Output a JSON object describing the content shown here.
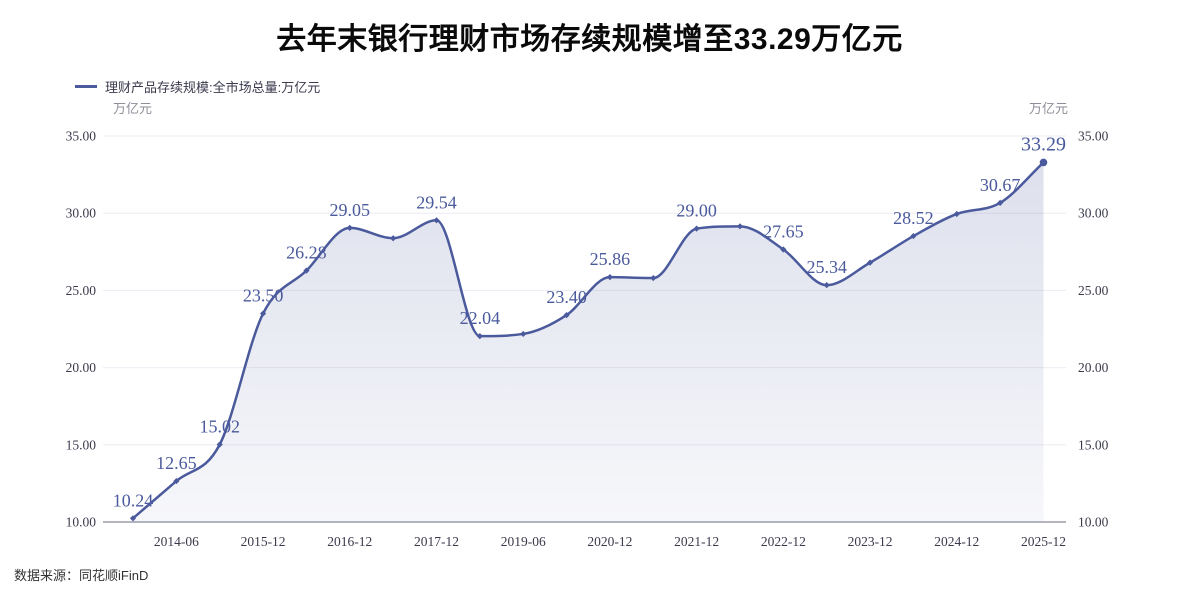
{
  "page": {
    "title": "去年末银行理财市场存续规模增至33.29万亿元",
    "source": "数据来源：同花顺iFinD"
  },
  "legend": {
    "label": "理财产品存续规模:全市场总量:万亿元"
  },
  "chart_data": {
    "type": "area",
    "title": "去年末银行理财市场存续规模增至33.29万亿元",
    "series_name": "理财产品存续规模:全市场总量:万亿元",
    "unit_left": "万亿元",
    "unit_right": "万亿元",
    "ylim": [
      10,
      35
    ],
    "y_ticks": [
      10,
      15,
      20,
      25,
      30,
      35
    ],
    "y_tick_format": "0.00",
    "grid": true,
    "legend_position": "top-left",
    "points": [
      {
        "tick": null,
        "value": 10.24,
        "labeled": true
      },
      {
        "tick": "2014-06",
        "value": 12.65,
        "labeled": true
      },
      {
        "tick": null,
        "value": 15.02,
        "labeled": true
      },
      {
        "tick": "2015-12",
        "value": 23.5,
        "labeled": true
      },
      {
        "tick": null,
        "value": 26.28,
        "labeled": true
      },
      {
        "tick": "2016-12",
        "value": 29.05,
        "labeled": true
      },
      {
        "tick": null,
        "value": 28.38,
        "labeled": false
      },
      {
        "tick": "2017-12",
        "value": 29.54,
        "labeled": true
      },
      {
        "tick": null,
        "value": 22.04,
        "labeled": true
      },
      {
        "tick": "2019-06",
        "value": 22.18,
        "labeled": false
      },
      {
        "tick": null,
        "value": 23.4,
        "labeled": true
      },
      {
        "tick": "2020-12",
        "value": 25.86,
        "labeled": true
      },
      {
        "tick": null,
        "value": 25.8,
        "labeled": false
      },
      {
        "tick": "2021-12",
        "value": 29.0,
        "labeled": true
      },
      {
        "tick": null,
        "value": 29.15,
        "labeled": false
      },
      {
        "tick": "2022-12",
        "value": 27.65,
        "labeled": true
      },
      {
        "tick": null,
        "value": 25.34,
        "labeled": true
      },
      {
        "tick": "2023-12",
        "value": 26.8,
        "labeled": false
      },
      {
        "tick": null,
        "value": 28.52,
        "labeled": true
      },
      {
        "tick": "2024-12",
        "value": 29.95,
        "labeled": false
      },
      {
        "tick": null,
        "value": 30.67,
        "labeled": true
      },
      {
        "tick": "2025-12",
        "value": 33.29,
        "labeled": true,
        "emphasis": true
      }
    ],
    "colors": {
      "line": "#4a5a9c",
      "marker": "#4a5a9c",
      "value_label": "#4a5a9c",
      "area_top": "rgba(88,102,164,0.20)",
      "area_bottom": "rgba(88,102,164,0.05)",
      "grid": "#ececf2",
      "axis_line": "#6b6b80",
      "axis_text": "#3a3a4c",
      "unit_text": "#8e8e99",
      "title": "#0a0a0a",
      "source_text": "#333333"
    }
  }
}
